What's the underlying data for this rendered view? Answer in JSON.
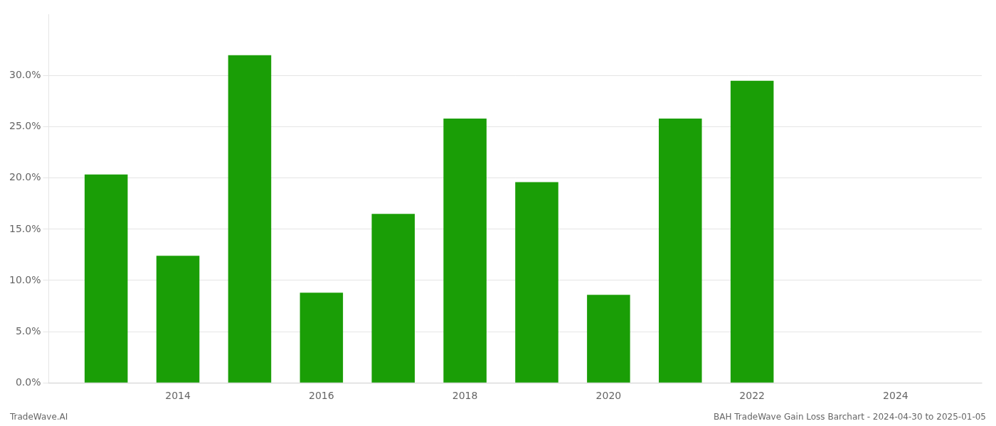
{
  "chart_data": {
    "type": "bar",
    "x": [
      2013,
      2014,
      2015,
      2016,
      2017,
      2018,
      2019,
      2020,
      2021,
      2022
    ],
    "values": [
      0.2035,
      0.124,
      0.32,
      0.088,
      0.165,
      0.258,
      0.196,
      0.086,
      0.258,
      0.295
    ],
    "color": "#1a9e06",
    "xlim": [
      2012.2,
      2025.2
    ],
    "xticks": [
      2014,
      2016,
      2018,
      2020,
      2022,
      2024
    ],
    "ylim": [
      0,
      0.36
    ],
    "yticks": [
      {
        "value": 0.0,
        "label": "0.0%"
      },
      {
        "value": 0.05,
        "label": "5.0%"
      },
      {
        "value": 0.1,
        "label": "10.0%"
      },
      {
        "value": 0.15,
        "label": "15.0%"
      },
      {
        "value": 0.2,
        "label": "20.0%"
      },
      {
        "value": 0.25,
        "label": "25.0%"
      },
      {
        "value": 0.3,
        "label": "30.0%"
      }
    ],
    "grid": true,
    "annotations": [
      "TradeWave.AI",
      "BAH TradeWave Gain Loss Barchart - 2024-04-30 to 2025-01-05"
    ]
  }
}
